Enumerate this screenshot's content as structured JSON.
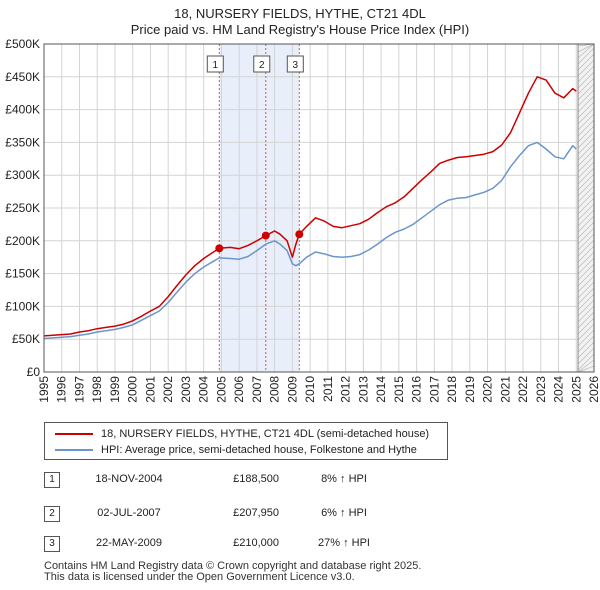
{
  "title_line1": "18, NURSERY FIELDS, HYTHE, CT21 4DL",
  "title_line2": "Price paid vs. HM Land Registry's House Price Index (HPI)",
  "chart_data": {
    "type": "line",
    "title": "18, NURSERY FIELDS, HYTHE, CT21 4DL — Price paid vs. HM Land Registry's House Price Index (HPI)",
    "xlabel": "",
    "ylabel": "",
    "xlim": [
      1995,
      2026
    ],
    "ylim": [
      0,
      500000
    ],
    "x_ticks": [
      1995,
      1996,
      1997,
      1998,
      1999,
      2000,
      2001,
      2002,
      2003,
      2004,
      2005,
      2006,
      2007,
      2008,
      2009,
      2010,
      2011,
      2012,
      2013,
      2014,
      2015,
      2016,
      2017,
      2018,
      2019,
      2020,
      2021,
      2022,
      2023,
      2024,
      2025,
      2026
    ],
    "y_ticks": [
      {
        "value": 0,
        "label": "£0"
      },
      {
        "value": 50000,
        "label": "£50K"
      },
      {
        "value": 100000,
        "label": "£100K"
      },
      {
        "value": 150000,
        "label": "£150K"
      },
      {
        "value": 200000,
        "label": "£200K"
      },
      {
        "value": 250000,
        "label": "£250K"
      },
      {
        "value": 300000,
        "label": "£300K"
      },
      {
        "value": 350000,
        "label": "£350K"
      },
      {
        "value": 400000,
        "label": "£400K"
      },
      {
        "value": 450000,
        "label": "£450K"
      },
      {
        "value": 500000,
        "label": "£500K"
      }
    ],
    "shaded_range": [
      2004.88,
      2009.39
    ],
    "data_end": 2025.1,
    "series": [
      {
        "name": "18, NURSERY FIELDS, HYTHE, CT21 4DL (semi-detached house)",
        "color": "#cc0000",
        "x": [
          1995.0,
          1995.5,
          1996.0,
          1996.5,
          1997.0,
          1997.5,
          1998.0,
          1998.5,
          1999.0,
          1999.5,
          2000.0,
          2000.5,
          2001.0,
          2001.5,
          2002.0,
          2002.5,
          2003.0,
          2003.5,
          2004.0,
          2004.5,
          2004.88,
          2005.5,
          2006.0,
          2006.5,
          2007.0,
          2007.5,
          2008.0,
          2008.3,
          2008.7,
          2009.0,
          2009.2,
          2009.39,
          2009.8,
          2010.3,
          2010.8,
          2011.3,
          2011.8,
          2012.3,
          2012.8,
          2013.3,
          2013.8,
          2014.3,
          2014.8,
          2015.3,
          2015.8,
          2016.3,
          2016.8,
          2017.3,
          2017.8,
          2018.3,
          2018.8,
          2019.3,
          2019.8,
          2020.3,
          2020.8,
          2021.3,
          2021.8,
          2022.3,
          2022.8,
          2023.3,
          2023.8,
          2024.3,
          2024.8,
          2025.0
        ],
        "y": [
          55000,
          56000,
          57000,
          58000,
          61000,
          63000,
          66000,
          68000,
          70000,
          73000,
          78000,
          85000,
          93000,
          100000,
          115000,
          132000,
          148000,
          162000,
          173000,
          182000,
          188500,
          190000,
          188000,
          193000,
          200000,
          207950,
          215000,
          210000,
          200000,
          175000,
          195000,
          210000,
          222000,
          235000,
          230000,
          222000,
          220000,
          223000,
          226000,
          233000,
          243000,
          252000,
          258000,
          267000,
          280000,
          293000,
          305000,
          318000,
          323000,
          327000,
          328000,
          330000,
          332000,
          336000,
          346000,
          365000,
          395000,
          425000,
          450000,
          445000,
          425000,
          418000,
          432000,
          428000
        ]
      },
      {
        "name": "HPI: Average price, semi-detached house, Folkestone and Hythe",
        "color": "#6a96cc",
        "x": [
          1995.0,
          1995.5,
          1996.0,
          1996.5,
          1997.0,
          1997.5,
          1998.0,
          1998.5,
          1999.0,
          1999.5,
          2000.0,
          2000.5,
          2001.0,
          2001.5,
          2002.0,
          2002.5,
          2003.0,
          2003.5,
          2004.0,
          2004.5,
          2004.88,
          2005.5,
          2006.0,
          2006.5,
          2007.0,
          2007.5,
          2008.0,
          2008.3,
          2008.7,
          2009.0,
          2009.2,
          2009.39,
          2009.8,
          2010.3,
          2010.8,
          2011.3,
          2011.8,
          2012.3,
          2012.8,
          2013.3,
          2013.8,
          2014.3,
          2014.8,
          2015.3,
          2015.8,
          2016.3,
          2016.8,
          2017.3,
          2017.8,
          2018.3,
          2018.8,
          2019.3,
          2019.8,
          2020.3,
          2020.8,
          2021.3,
          2021.8,
          2022.3,
          2022.8,
          2023.3,
          2023.8,
          2024.3,
          2024.8,
          2025.0
        ],
        "y": [
          51000,
          52000,
          53000,
          54000,
          56000,
          58000,
          61000,
          63000,
          65000,
          68000,
          72000,
          79000,
          86000,
          93000,
          106000,
          122000,
          137000,
          150000,
          160000,
          168000,
          174000,
          173000,
          172000,
          176000,
          185000,
          195000,
          200000,
          195000,
          185000,
          165000,
          162000,
          165000,
          175000,
          183000,
          180000,
          176000,
          175000,
          176000,
          179000,
          186000,
          195000,
          205000,
          213000,
          218000,
          225000,
          235000,
          245000,
          255000,
          262000,
          265000,
          266000,
          270000,
          274000,
          280000,
          292000,
          313000,
          330000,
          345000,
          350000,
          340000,
          328000,
          325000,
          345000,
          340000
        ]
      }
    ],
    "sale_markers": [
      {
        "label": "1",
        "x": 2004.88,
        "y": 188500
      },
      {
        "label": "2",
        "x": 2007.5,
        "y": 207950
      },
      {
        "label": "3",
        "x": 2009.39,
        "y": 210000
      }
    ]
  },
  "legend": {
    "property": "18, NURSERY FIELDS, HYTHE, CT21 4DL (semi-detached house)",
    "hpi": "HPI: Average price, semi-detached house, Folkestone and Hythe",
    "property_color": "#cc0000",
    "hpi_color": "#6a96cc"
  },
  "sales": [
    {
      "num": "1",
      "date": "18-NOV-2004",
      "price": "£188,500",
      "hpi": "8% ↑ HPI"
    },
    {
      "num": "2",
      "date": "02-JUL-2007",
      "price": "£207,950",
      "hpi": "6% ↑ HPI"
    },
    {
      "num": "3",
      "date": "22-MAY-2009",
      "price": "£210,000",
      "hpi": "27% ↑ HPI"
    }
  ],
  "footer_line1": "Contains HM Land Registry data © Crown copyright and database right 2025.",
  "footer_line2": "This data is licensed under the Open Government Licence v3.0."
}
